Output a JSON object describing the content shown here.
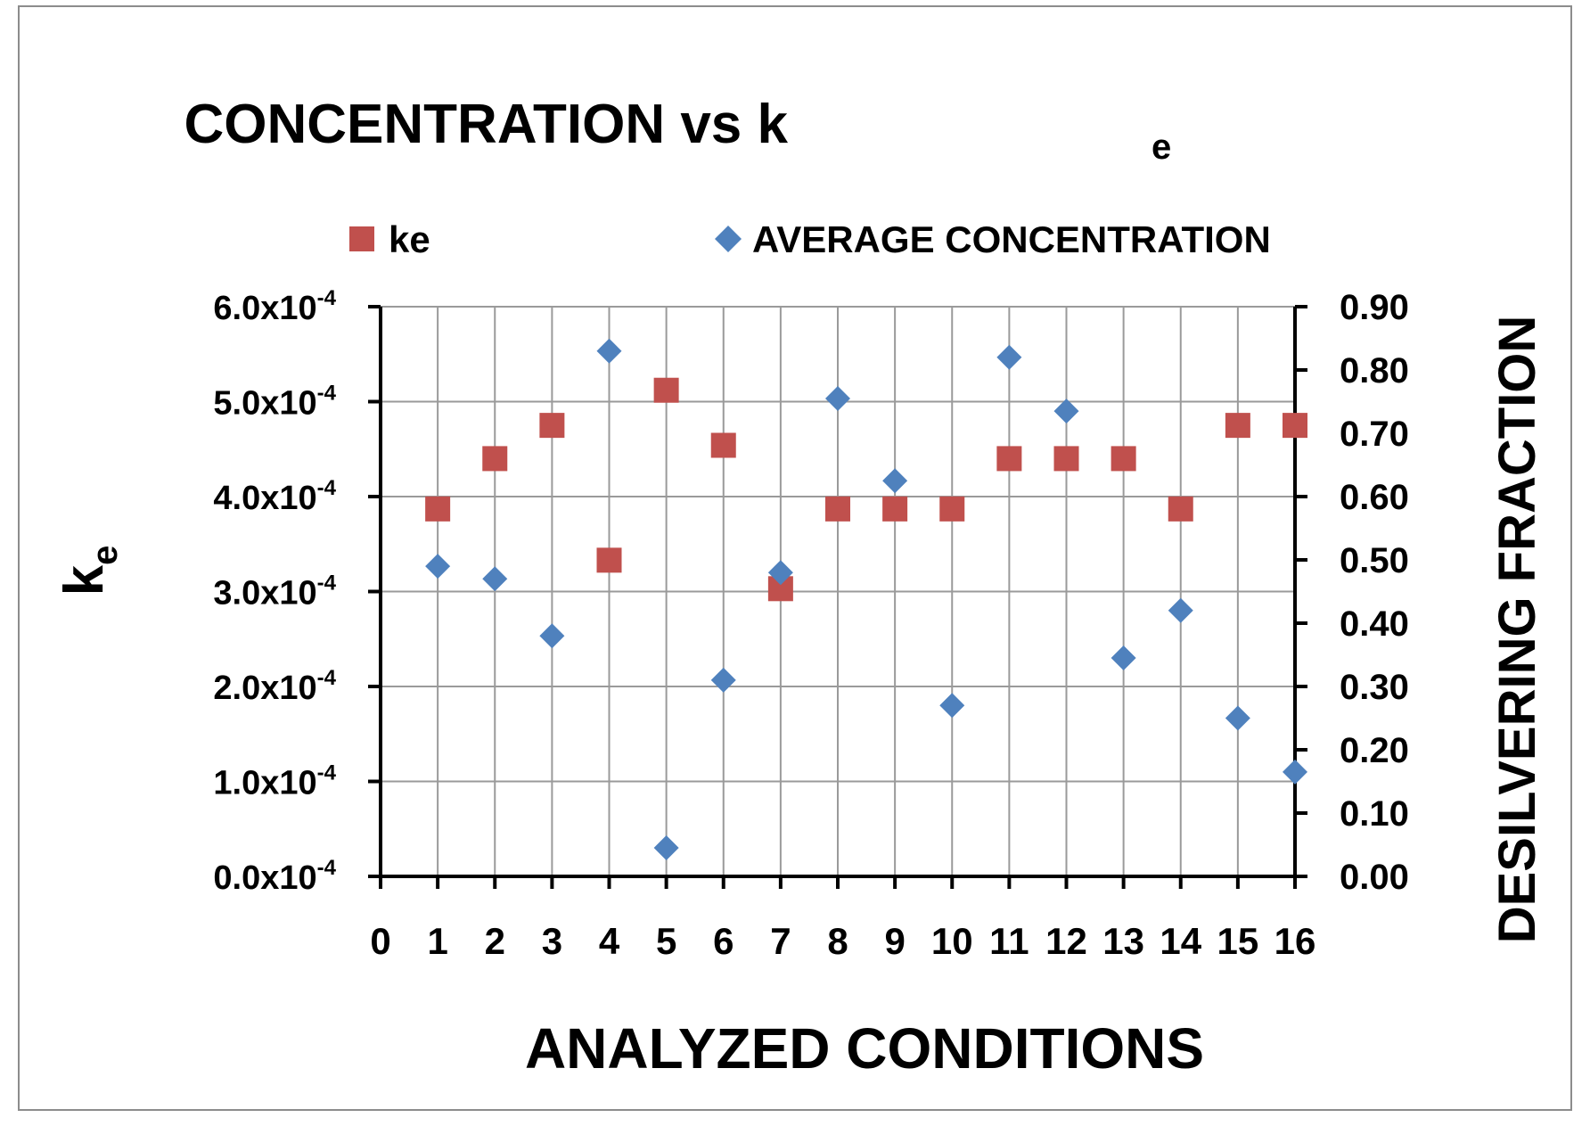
{
  "chart_data": {
    "type": "scatter",
    "title": "CONCENTRATION  vs  k",
    "title_subscript": "e",
    "xlabel": "ANALYZED CONDITIONS",
    "ylabel": "k",
    "ylabel_subscript": "e",
    "y2label": "DESILVERING FRACTION",
    "xlim": [
      0,
      16
    ],
    "x_ticks": [
      "0",
      "1",
      "2",
      "3",
      "4",
      "5",
      "6",
      "7",
      "8",
      "9",
      "10",
      "11",
      "12",
      "13",
      "14",
      "15",
      "16"
    ],
    "ylim": [
      0,
      6
    ],
    "y_ticks": [
      {
        "mantissa": "0.0x10",
        "exp": "-4"
      },
      {
        "mantissa": "1.0x10",
        "exp": "-4"
      },
      {
        "mantissa": "2.0x10",
        "exp": "-4"
      },
      {
        "mantissa": "3.0x10",
        "exp": "-4"
      },
      {
        "mantissa": "4.0x10",
        "exp": "-4"
      },
      {
        "mantissa": "5.0x10",
        "exp": "-4"
      },
      {
        "mantissa": "6.0x10",
        "exp": "-4"
      }
    ],
    "y_scale_note": "left axis values in units of 1e-4",
    "y2lim": [
      0,
      0.9
    ],
    "y2_ticks": [
      "0.00",
      "0.10",
      "0.20",
      "0.30",
      "0.40",
      "0.50",
      "0.60",
      "0.70",
      "0.80",
      "0.90"
    ],
    "legend_position": "top",
    "series": [
      {
        "name": "ke",
        "axis": "left",
        "marker": "square",
        "color": "#c0504d",
        "x": [
          1,
          2,
          3,
          4,
          5,
          6,
          7,
          8,
          9,
          10,
          11,
          12,
          13,
          14,
          15,
          16
        ],
        "y": [
          3.87,
          4.4,
          4.75,
          3.33,
          5.12,
          4.54,
          3.03,
          3.87,
          3.87,
          3.87,
          4.4,
          4.4,
          4.4,
          3.87,
          4.75,
          4.75
        ]
      },
      {
        "name": "AVERAGE CONCENTRATION",
        "axis": "right",
        "marker": "diamond",
        "color": "#4f81bd",
        "x": [
          1,
          2,
          3,
          4,
          5,
          6,
          7,
          8,
          9,
          10,
          11,
          12,
          13,
          14,
          15,
          16
        ],
        "y": [
          0.49,
          0.47,
          0.38,
          0.83,
          0.045,
          0.31,
          0.48,
          0.755,
          0.625,
          0.27,
          0.82,
          0.735,
          0.345,
          0.42,
          0.25,
          0.165
        ]
      }
    ]
  }
}
